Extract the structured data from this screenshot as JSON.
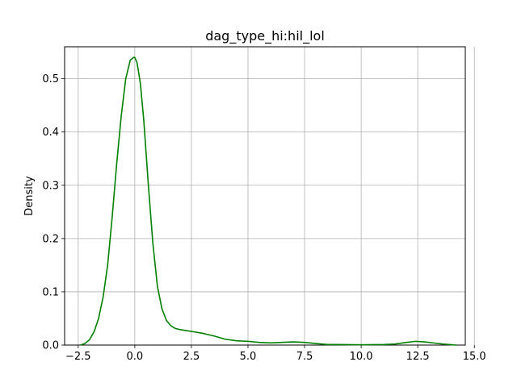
{
  "chart_data": {
    "type": "line",
    "title": "dag_type_hi:hil_lol",
    "xlabel": "",
    "ylabel": "Density",
    "xlim": [
      -3.1,
      14.6
    ],
    "ylim": [
      0,
      0.56
    ],
    "grid": true,
    "x_ticks": [
      -2.5,
      0.0,
      2.5,
      5.0,
      7.5,
      10.0,
      12.5,
      15.0
    ],
    "x_tick_labels": [
      "−2.5",
      "0.0",
      "2.5",
      "5.0",
      "7.5",
      "10.0",
      "12.5",
      "15.0"
    ],
    "y_ticks": [
      0.0,
      0.1,
      0.2,
      0.3,
      0.4,
      0.5
    ],
    "y_tick_labels": [
      "0.0",
      "0.1",
      "0.2",
      "0.3",
      "0.4",
      "0.5"
    ],
    "series": [
      {
        "color": "#008000",
        "x": [
          -2.4,
          -2.2,
          -2.0,
          -1.8,
          -1.6,
          -1.4,
          -1.2,
          -1.0,
          -0.8,
          -0.6,
          -0.4,
          -0.2,
          -0.05,
          0.0,
          0.1,
          0.25,
          0.4,
          0.6,
          0.8,
          1.0,
          1.2,
          1.4,
          1.6,
          1.8,
          2.0,
          2.3,
          2.6,
          3.0,
          3.5,
          4.0,
          4.5,
          5.0,
          5.5,
          6.0,
          6.5,
          7.0,
          7.5,
          8.0,
          8.5,
          9.0,
          10.0,
          11.0,
          11.5,
          12.0,
          12.4,
          12.8,
          13.2,
          13.6,
          14.2
        ],
        "y": [
          0.0,
          0.003,
          0.01,
          0.025,
          0.05,
          0.09,
          0.15,
          0.24,
          0.34,
          0.43,
          0.5,
          0.535,
          0.54,
          0.54,
          0.53,
          0.49,
          0.42,
          0.3,
          0.19,
          0.11,
          0.068,
          0.046,
          0.036,
          0.031,
          0.029,
          0.027,
          0.025,
          0.022,
          0.017,
          0.011,
          0.008,
          0.007,
          0.005,
          0.004,
          0.005,
          0.006,
          0.005,
          0.003,
          0.001,
          0.001,
          0.0005,
          0.001,
          0.002,
          0.005,
          0.007,
          0.006,
          0.004,
          0.002,
          0.0
        ]
      }
    ]
  }
}
